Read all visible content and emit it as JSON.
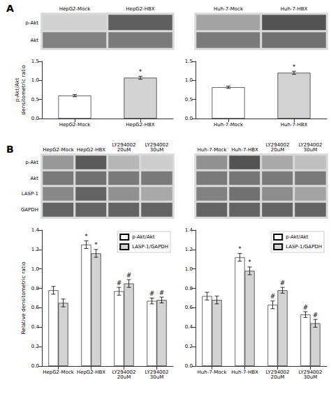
{
  "chart_data": [
    {
      "type": "heatmap",
      "title": "A",
      "categories": [
        "HepG2-Mock",
        "HepG2-HBX"
      ],
      "rows": [
        "p-Akt",
        "Akt"
      ],
      "cells": [
        [
          0.2,
          0.7
        ],
        [
          0.55,
          0.58
        ]
      ],
      "color_range": [
        0,
        1
      ]
    },
    {
      "type": "heatmap",
      "categories": [
        "Huh-7-Mock",
        "Huh-7-HBX"
      ],
      "cells": [
        [
          0.4,
          0.75
        ],
        [
          0.58,
          0.62
        ]
      ],
      "color_range": [
        0,
        1
      ],
      "tick_labels": "x"
    },
    {
      "type": "bar",
      "categories": [
        "HepG2-Mock",
        "HepG2-HBX"
      ],
      "series": [
        {
          "colors": [
            "white",
            "lightgray"
          ],
          "values": [
            0.6,
            1.07
          ],
          "errors": [
            0.03,
            0.04
          ],
          "annotations": [
            null,
            "*"
          ]
        }
      ],
      "ylabel": "p-Akt/Akt\ndensitometric ratio",
      "ylim": [
        0,
        1.5
      ],
      "yticks": [
        {
          "value": 0.0,
          "label": "0.0"
        },
        0.5,
        {
          "value": 1.0,
          "label": "1.0"
        },
        1.5
      ],
      "grid": false
    },
    {
      "type": "bar",
      "categories": [
        "Huh-7-Mock",
        "Huh-7-HBX"
      ],
      "series": [
        {
          "colors": [
            "white",
            "lightgray"
          ],
          "values": [
            0.82,
            1.2
          ],
          "errors": [
            0.03,
            0.04
          ],
          "annotations": [
            null,
            "*"
          ]
        }
      ],
      "ylim": [
        0,
        1.5
      ],
      "yticks": [
        {
          "value": 0.0,
          "label": "0.0"
        },
        0.5,
        {
          "value": 1.0,
          "label": "1.0"
        },
        1.5
      ],
      "grid": false
    },
    {
      "type": "heatmap",
      "title": "B",
      "categories": [
        "HepG2-Mock",
        "HepG2-HBX",
        "LY294002\n20uM",
        "LY294002\n30uM"
      ],
      "rows": [
        "p-Akt",
        "Akt",
        "LASP-1",
        "GAPDH"
      ],
      "cells": [
        [
          0.45,
          0.72,
          0.32,
          0.22
        ],
        [
          0.58,
          0.62,
          0.58,
          0.58
        ],
        [
          0.52,
          0.68,
          0.48,
          0.38
        ],
        [
          0.68,
          0.68,
          0.68,
          0.68
        ]
      ],
      "color_range": [
        0,
        1
      ]
    },
    {
      "type": "heatmap",
      "categories": [
        "Huh-7-Mock",
        "Huh-7-HBX",
        "LY294002\n20uM",
        "LY294002\n30uM"
      ],
      "cells": [
        [
          0.48,
          0.75,
          0.38,
          0.28
        ],
        [
          0.58,
          0.6,
          0.58,
          0.58
        ],
        [
          0.55,
          0.62,
          0.5,
          0.4
        ],
        [
          0.68,
          0.68,
          0.68,
          0.68
        ]
      ],
      "color_range": [
        0,
        1
      ],
      "tick_labels": "x"
    },
    {
      "type": "bar",
      "categories": [
        "HepG2-Mock",
        "HepG2-HBX",
        "LY294002\n20uM",
        "LY294002\n30uM"
      ],
      "series": [
        {
          "name": "p-Akt/Akt",
          "color": "white",
          "values": [
            0.78,
            1.25,
            0.77,
            0.67
          ],
          "errors": [
            0.04,
            0.04,
            0.04,
            0.03
          ],
          "annotations": [
            null,
            "*",
            "#",
            "#"
          ]
        },
        {
          "name": "LASP-1/GAPDH",
          "color": "lightgray",
          "values": [
            0.65,
            1.16,
            0.85,
            0.68
          ],
          "errors": [
            0.04,
            0.04,
            0.04,
            0.03
          ],
          "annotations": [
            null,
            "*",
            "#",
            "#"
          ]
        }
      ],
      "ylabel": "Relative densitometric ratio",
      "ylim": [
        0,
        1.4
      ],
      "yticks": [
        {
          "value": 0.0,
          "label": "0.0"
        },
        0.2,
        0.4,
        0.6,
        0.8,
        {
          "value": 1.0,
          "label": "1.0"
        },
        1.2,
        1.4
      ],
      "legend": "upper right",
      "grid": false
    },
    {
      "type": "bar",
      "categories": [
        "Huh-7-Mock",
        "Huh-7-HBX",
        "LY294002\n20uM",
        "LY294002\n30uM"
      ],
      "series": [
        {
          "name": "p-Akt/Akt",
          "color": "white",
          "values": [
            0.72,
            1.12,
            0.63,
            0.53
          ],
          "errors": [
            0.04,
            0.04,
            0.04,
            0.03
          ],
          "annotations": [
            null,
            "*",
            "#",
            "#"
          ]
        },
        {
          "name": "LASP-1/GAPDH",
          "color": "lightgray",
          "values": [
            0.68,
            0.98,
            0.78,
            0.44
          ],
          "errors": [
            0.04,
            0.04,
            0.03,
            0.04
          ],
          "annotations": [
            null,
            "*",
            "#",
            "#"
          ]
        }
      ],
      "ylim": [
        0,
        1.4
      ],
      "yticks": [
        {
          "value": 0.0,
          "label": "0.0"
        },
        0.2,
        0.4,
        0.6,
        0.8,
        {
          "value": 1.0,
          "label": "1.0"
        },
        1.2,
        1.4
      ],
      "legend": "upper right",
      "grid": false
    }
  ]
}
